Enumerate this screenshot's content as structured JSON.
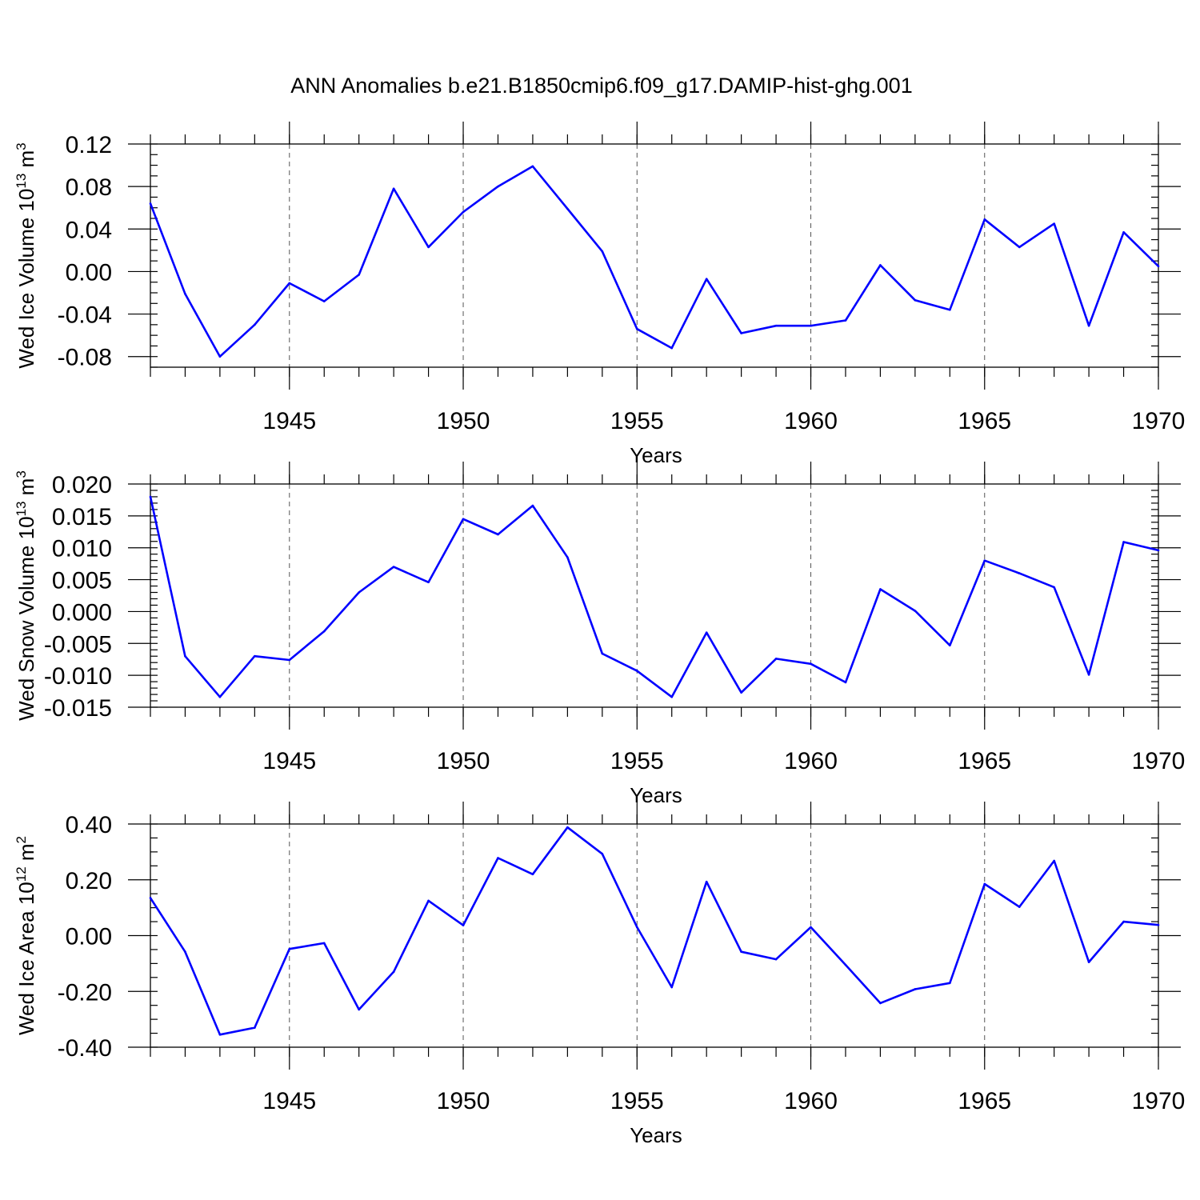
{
  "title": "ANN Anomalies b.e21.B1850cmip6.f09_g17.DAMIP-hist-ghg.001",
  "chart_data": [
    {
      "type": "line",
      "ylabel_main": "Wed Ice Volume 10",
      "ylabel_exp": "13",
      "ylabel_unit": "m",
      "ylabel_unit_exp": "3",
      "xlabel": "Years",
      "xlim": [
        1941,
        1970
      ],
      "ylim": [
        -0.09,
        0.12
      ],
      "yticks": [
        -0.08,
        -0.04,
        0.0,
        0.04,
        0.08,
        0.12
      ],
      "ytick_labels": [
        "-0.08",
        "-0.04",
        "0.00",
        "0.04",
        "0.08",
        "0.12"
      ],
      "yminor_step": 0.01,
      "xticks": [
        1945,
        1950,
        1955,
        1960,
        1965,
        1970
      ],
      "xtick_labels": [
        "1945",
        "1950",
        "1955",
        "1960",
        "1965",
        "1970"
      ],
      "grid_x": [
        1945,
        1950,
        1955,
        1960,
        1965
      ],
      "color": "#0000ff",
      "x": [
        1941,
        1942,
        1943,
        1944,
        1945,
        1946,
        1947,
        1948,
        1949,
        1950,
        1951,
        1952,
        1953,
        1954,
        1955,
        1956,
        1957,
        1958,
        1959,
        1960,
        1961,
        1962,
        1963,
        1964,
        1965,
        1966,
        1967,
        1968,
        1969,
        1970
      ],
      "values": [
        0.064,
        -0.021,
        -0.08,
        -0.05,
        -0.011,
        -0.028,
        -0.003,
        0.078,
        0.023,
        0.056,
        0.08,
        0.099,
        0.059,
        0.019,
        -0.054,
        -0.072,
        -0.007,
        -0.058,
        -0.051,
        -0.051,
        -0.046,
        0.006,
        -0.027,
        -0.036,
        0.049,
        0.023,
        0.045,
        -0.051,
        0.037,
        0.005
      ]
    },
    {
      "type": "line",
      "ylabel_main": "Wed Snow Volume 10",
      "ylabel_exp": "13",
      "ylabel_unit": "m",
      "ylabel_unit_exp": "3",
      "xlabel": "Years",
      "xlim": [
        1941,
        1970
      ],
      "ylim": [
        -0.015,
        0.02
      ],
      "yticks": [
        -0.015,
        -0.01,
        -0.005,
        0.0,
        0.005,
        0.01,
        0.015,
        0.02
      ],
      "ytick_labels": [
        "-0.015",
        "-0.010",
        "-0.005",
        "0.000",
        "0.005",
        "0.010",
        "0.015",
        "0.020"
      ],
      "yminor_step": 0.001,
      "xticks": [
        1945,
        1950,
        1955,
        1960,
        1965,
        1970
      ],
      "xtick_labels": [
        "1945",
        "1950",
        "1955",
        "1960",
        "1965",
        "1970"
      ],
      "grid_x": [
        1945,
        1950,
        1955,
        1960,
        1965
      ],
      "color": "#0000ff",
      "x": [
        1941,
        1942,
        1943,
        1944,
        1945,
        1946,
        1947,
        1948,
        1949,
        1950,
        1951,
        1952,
        1953,
        1954,
        1955,
        1956,
        1957,
        1958,
        1959,
        1960,
        1961,
        1962,
        1963,
        1964,
        1965,
        1966,
        1967,
        1968,
        1969,
        1970
      ],
      "values": [
        0.018,
        -0.007,
        -0.0134,
        -0.007,
        -0.0076,
        -0.0031,
        0.003,
        0.007,
        0.0046,
        0.0145,
        0.0121,
        0.0166,
        0.0085,
        -0.0066,
        -0.0093,
        -0.0134,
        -0.0033,
        -0.0127,
        -0.0074,
        -0.0082,
        -0.0111,
        0.0035,
        0.0001,
        -0.0053,
        0.008,
        0.006,
        0.0038,
        -0.0099,
        0.0109,
        0.0096
      ]
    },
    {
      "type": "line",
      "ylabel_main": "Wed Ice Area 10",
      "ylabel_exp": "12",
      "ylabel_unit": "m",
      "ylabel_unit_exp": "2",
      "xlabel": "Years",
      "xlim": [
        1941,
        1970
      ],
      "ylim": [
        -0.4,
        0.4
      ],
      "yticks": [
        -0.4,
        -0.2,
        0.0,
        0.2,
        0.4
      ],
      "ytick_labels": [
        "-0.40",
        "-0.20",
        "0.00",
        "0.20",
        "0.40"
      ],
      "yminor_step": 0.05,
      "xticks": [
        1945,
        1950,
        1955,
        1960,
        1965,
        1970
      ],
      "xtick_labels": [
        "1945",
        "1950",
        "1955",
        "1960",
        "1965",
        "1970"
      ],
      "grid_x": [
        1945,
        1950,
        1955,
        1960,
        1965
      ],
      "color": "#0000ff",
      "x": [
        1941,
        1942,
        1943,
        1944,
        1945,
        1946,
        1947,
        1948,
        1949,
        1950,
        1951,
        1952,
        1953,
        1954,
        1955,
        1956,
        1957,
        1958,
        1959,
        1960,
        1961,
        1962,
        1963,
        1964,
        1965,
        1966,
        1967,
        1968,
        1969,
        1970
      ],
      "values": [
        0.135,
        -0.058,
        -0.355,
        -0.33,
        -0.048,
        -0.027,
        -0.265,
        -0.13,
        0.125,
        0.037,
        0.278,
        0.22,
        0.388,
        0.293,
        0.03,
        -0.185,
        0.193,
        -0.058,
        -0.085,
        0.03,
        -0.105,
        -0.242,
        -0.192,
        -0.17,
        0.185,
        0.103,
        0.268,
        -0.095,
        0.05,
        0.038
      ]
    }
  ]
}
